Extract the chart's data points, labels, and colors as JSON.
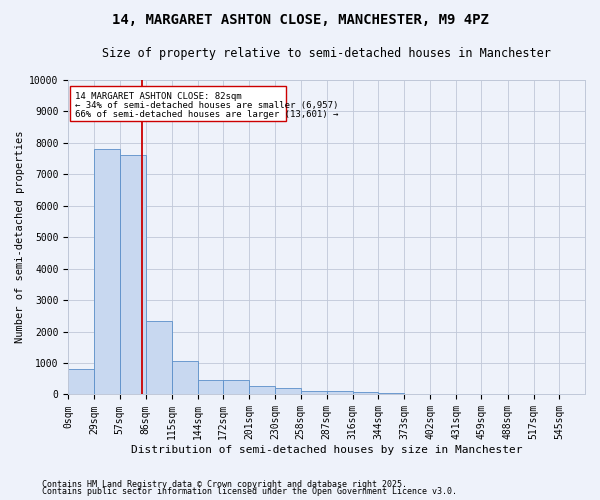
{
  "title": "14, MARGARET ASHTON CLOSE, MANCHESTER, M9 4PZ",
  "subtitle": "Size of property relative to semi-detached houses in Manchester",
  "xlabel": "Distribution of semi-detached houses by size in Manchester",
  "ylabel": "Number of semi-detached properties",
  "bar_edges": [
    0,
    29,
    57,
    86,
    115,
    144,
    172,
    201,
    230,
    258,
    287,
    316,
    344,
    373,
    402,
    431,
    459,
    488,
    517,
    545,
    574
  ],
  "bar_heights": [
    800,
    7800,
    7600,
    2350,
    1050,
    450,
    450,
    280,
    200,
    120,
    120,
    90,
    50,
    30,
    20,
    10,
    5,
    5,
    3,
    2
  ],
  "bar_color": "#c8d8f0",
  "bar_edge_color": "#5b8fc9",
  "property_size": 82,
  "red_line_color": "#cc0000",
  "annotation_box_color": "#cc0000",
  "annotation_text_1": "14 MARGARET ASHTON CLOSE: 82sqm",
  "annotation_text_2": "← 34% of semi-detached houses are smaller (6,957)",
  "annotation_text_3": "66% of semi-detached houses are larger (13,601) →",
  "ylim": [
    0,
    10000
  ],
  "yticks": [
    0,
    1000,
    2000,
    3000,
    4000,
    5000,
    6000,
    7000,
    8000,
    9000,
    10000
  ],
  "footnote_1": "Contains HM Land Registry data © Crown copyright and database right 2025.",
  "footnote_2": "Contains public sector information licensed under the Open Government Licence v3.0.",
  "bg_color": "#eef2fa",
  "grid_color": "#c0c8d8",
  "title_fontsize": 10,
  "subtitle_fontsize": 8.5,
  "axis_label_fontsize": 7.5,
  "tick_fontsize": 7,
  "annotation_fontsize": 6.5,
  "footnote_fontsize": 6
}
